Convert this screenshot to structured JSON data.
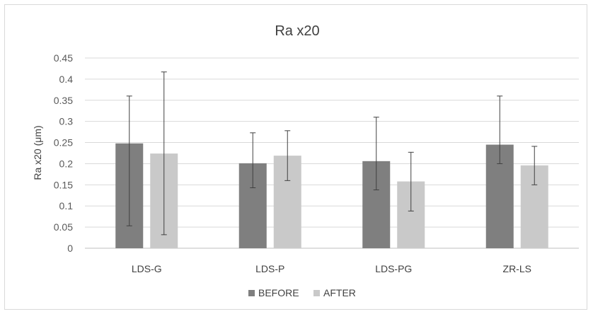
{
  "chart_data": {
    "type": "bar",
    "title": "Ra x20",
    "xlabel": "",
    "ylabel": "Ra x20 (μm)",
    "categories": [
      "LDS-G",
      "LDS-P",
      "LDS-PG",
      "ZR-LS"
    ],
    "ylim": [
      0,
      0.45
    ],
    "yticks": [
      0,
      0.05,
      0.1,
      0.15,
      0.2,
      0.25,
      0.3,
      0.35,
      0.4,
      0.45
    ],
    "ytick_labels": [
      "0",
      "0.05",
      "0.1",
      "0.15",
      "0.2",
      "0.25",
      "0.3",
      "0.35",
      "0.4",
      "0.45"
    ],
    "grid": true,
    "legend_position": "bottom",
    "series": [
      {
        "name": "BEFORE",
        "color": "#7f7f7f",
        "values": [
          0.248,
          0.201,
          0.206,
          0.245
        ],
        "error_low": [
          0.053,
          0.143,
          0.138,
          0.2
        ],
        "error_high": [
          0.36,
          0.273,
          0.31,
          0.36
        ]
      },
      {
        "name": "AFTER",
        "color": "#c9c9c9",
        "values": [
          0.224,
          0.219,
          0.158,
          0.196
        ],
        "error_low": [
          0.032,
          0.16,
          0.088,
          0.15
        ],
        "error_high": [
          0.417,
          0.278,
          0.227,
          0.241
        ]
      }
    ]
  }
}
